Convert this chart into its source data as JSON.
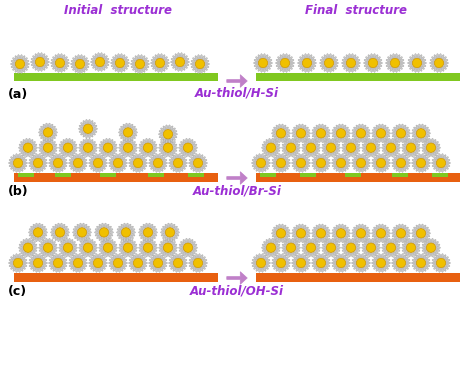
{
  "title_initial": "Initial  structure",
  "title_final": "Final  structure",
  "label_color": "#9B2FD4",
  "panel_labels": [
    "(a)",
    "(b)",
    "(c)"
  ],
  "panel_captions": [
    "Au-thiol/H-Si",
    "Au-thiol/Br-Si",
    "Au-thiol/OH-Si"
  ],
  "background_color": "#ffffff",
  "green_color": "#80C820",
  "orange_color": "#E86010",
  "arrow_color": "#C080C8",
  "petal_color": "#C8C8C8",
  "petal_edge": "#A0A0A0",
  "core_color": "#F0C000",
  "core_outline": "#C89000",
  "spike_color": "#B0B0B0"
}
